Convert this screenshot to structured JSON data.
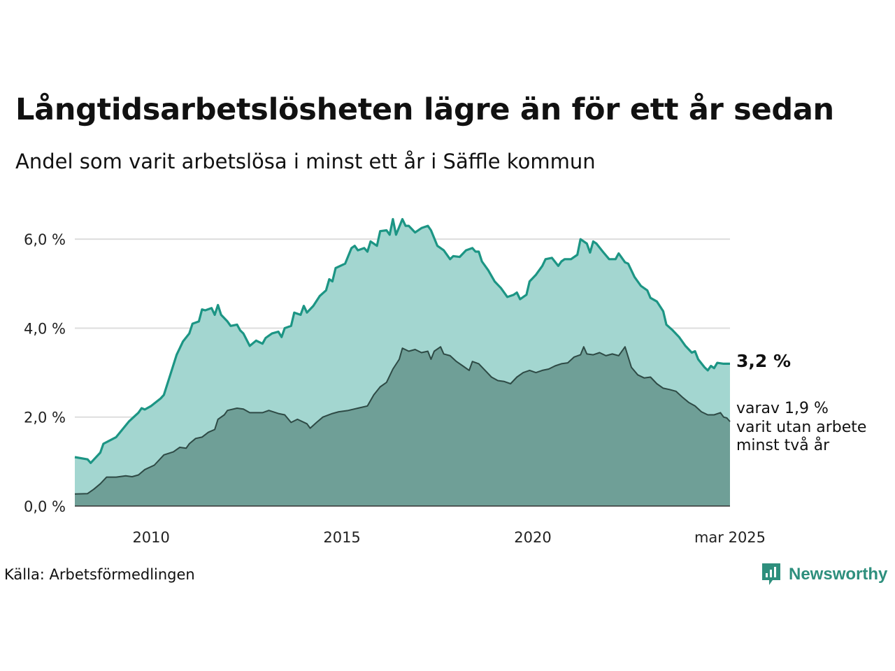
{
  "header": {
    "title": "Långtidsarbetslösheten lägre än för ett år sedan",
    "subtitle": "Andel som varit arbetslösa i minst ett år i Säffle kommun"
  },
  "footer": {
    "source": "Källa: Arbetsförmedlingen",
    "brand": "Newsworthy",
    "brand_icon": "newsworthy-chart-logo-icon"
  },
  "colors": {
    "main_fill": "#a3d6d0",
    "main_line": "#1c9584",
    "sub_fill": "#6f9f97",
    "sub_line": "#2e4a45",
    "grid": "#dddddd",
    "brand": "#2e8f7d"
  },
  "chart_data": {
    "type": "area",
    "x_range": [
      "2008-01",
      "2025-03"
    ],
    "ylim": [
      0,
      6.6
    ],
    "y_ticks": [
      0,
      2,
      4,
      6
    ],
    "y_tick_labels": [
      "0,0 %",
      "2,0 %",
      "4,0 %",
      "6,0 %"
    ],
    "x_ticks": [
      "2010-01",
      "2015-01",
      "2020-01",
      "2025-03"
    ],
    "x_tick_labels": [
      "2010",
      "2015",
      "2020",
      "mar 2025"
    ],
    "grid": true,
    "end_labels": {
      "main": "3,2 %",
      "sub": [
        "varav 1,9 %",
        "varit utan arbete",
        "minst två år"
      ]
    },
    "series": [
      {
        "points": [
          [
            "2008-01",
            1.1
          ],
          [
            "2008-05",
            1.05
          ],
          [
            "2008-06",
            0.97
          ],
          [
            "2008-09",
            1.2
          ],
          [
            "2008-10",
            1.4
          ],
          [
            "2009-02",
            1.55
          ],
          [
            "2009-06",
            1.9
          ],
          [
            "2009-09",
            2.1
          ],
          [
            "2009-10",
            2.2
          ],
          [
            "2009-11",
            2.17
          ],
          [
            "2010-01",
            2.25
          ],
          [
            "2010-04",
            2.42
          ],
          [
            "2010-05",
            2.5
          ],
          [
            "2010-07",
            2.95
          ],
          [
            "2010-09",
            3.4
          ],
          [
            "2010-11",
            3.7
          ],
          [
            "2011-01",
            3.88
          ],
          [
            "2011-02",
            4.1
          ],
          [
            "2011-04",
            4.15
          ],
          [
            "2011-05",
            4.42
          ],
          [
            "2011-06",
            4.4
          ],
          [
            "2011-08",
            4.45
          ],
          [
            "2011-09",
            4.3
          ],
          [
            "2011-10",
            4.52
          ],
          [
            "2011-11",
            4.3
          ],
          [
            "2012-01",
            4.15
          ],
          [
            "2012-02",
            4.05
          ],
          [
            "2012-04",
            4.08
          ],
          [
            "2012-05",
            3.95
          ],
          [
            "2012-06",
            3.88
          ],
          [
            "2012-08",
            3.6
          ],
          [
            "2012-10",
            3.72
          ],
          [
            "2012-12",
            3.65
          ],
          [
            "2013-01",
            3.78
          ],
          [
            "2013-03",
            3.88
          ],
          [
            "2013-05",
            3.92
          ],
          [
            "2013-06",
            3.8
          ],
          [
            "2013-07",
            4.0
          ],
          [
            "2013-09",
            4.05
          ],
          [
            "2013-10",
            4.35
          ],
          [
            "2013-12",
            4.3
          ],
          [
            "2014-01",
            4.5
          ],
          [
            "2014-02",
            4.35
          ],
          [
            "2014-04",
            4.5
          ],
          [
            "2014-06",
            4.72
          ],
          [
            "2014-08",
            4.85
          ],
          [
            "2014-09",
            5.1
          ],
          [
            "2014-10",
            5.05
          ],
          [
            "2014-11",
            5.35
          ],
          [
            "2015-02",
            5.45
          ],
          [
            "2015-04",
            5.8
          ],
          [
            "2015-05",
            5.85
          ],
          [
            "2015-06",
            5.75
          ],
          [
            "2015-08",
            5.8
          ],
          [
            "2015-09",
            5.72
          ],
          [
            "2015-10",
            5.95
          ],
          [
            "2015-12",
            5.85
          ],
          [
            "2016-01",
            6.18
          ],
          [
            "2016-03",
            6.2
          ],
          [
            "2016-04",
            6.1
          ],
          [
            "2016-05",
            6.45
          ],
          [
            "2016-06",
            6.1
          ],
          [
            "2016-08",
            6.45
          ],
          [
            "2016-09",
            6.3
          ],
          [
            "2016-10",
            6.3
          ],
          [
            "2016-12",
            6.15
          ],
          [
            "2017-02",
            6.25
          ],
          [
            "2017-04",
            6.3
          ],
          [
            "2017-05",
            6.2
          ],
          [
            "2017-07",
            5.85
          ],
          [
            "2017-09",
            5.75
          ],
          [
            "2017-11",
            5.55
          ],
          [
            "2017-12",
            5.62
          ],
          [
            "2018-02",
            5.6
          ],
          [
            "2018-04",
            5.75
          ],
          [
            "2018-06",
            5.8
          ],
          [
            "2018-07",
            5.72
          ],
          [
            "2018-08",
            5.72
          ],
          [
            "2018-09",
            5.5
          ],
          [
            "2018-11",
            5.3
          ],
          [
            "2019-01",
            5.05
          ],
          [
            "2019-03",
            4.9
          ],
          [
            "2019-05",
            4.7
          ],
          [
            "2019-07",
            4.75
          ],
          [
            "2019-08",
            4.8
          ],
          [
            "2019-09",
            4.65
          ],
          [
            "2019-11",
            4.75
          ],
          [
            "2019-12",
            5.05
          ],
          [
            "2020-02",
            5.2
          ],
          [
            "2020-04",
            5.4
          ],
          [
            "2020-05",
            5.55
          ],
          [
            "2020-07",
            5.58
          ],
          [
            "2020-09",
            5.4
          ],
          [
            "2020-10",
            5.5
          ],
          [
            "2020-11",
            5.55
          ],
          [
            "2021-01",
            5.55
          ],
          [
            "2021-03",
            5.65
          ],
          [
            "2021-04",
            6.0
          ],
          [
            "2021-06",
            5.9
          ],
          [
            "2021-07",
            5.7
          ],
          [
            "2021-08",
            5.95
          ],
          [
            "2021-09",
            5.9
          ],
          [
            "2021-11",
            5.72
          ],
          [
            "2022-01",
            5.55
          ],
          [
            "2022-03",
            5.55
          ],
          [
            "2022-04",
            5.68
          ],
          [
            "2022-06",
            5.48
          ],
          [
            "2022-07",
            5.45
          ],
          [
            "2022-09",
            5.15
          ],
          [
            "2022-11",
            4.95
          ],
          [
            "2023-01",
            4.85
          ],
          [
            "2023-02",
            4.68
          ],
          [
            "2023-04",
            4.6
          ],
          [
            "2023-06",
            4.38
          ],
          [
            "2023-07",
            4.08
          ],
          [
            "2023-09",
            3.95
          ],
          [
            "2023-11",
            3.8
          ],
          [
            "2024-01",
            3.6
          ],
          [
            "2024-03",
            3.45
          ],
          [
            "2024-04",
            3.48
          ],
          [
            "2024-05",
            3.3
          ],
          [
            "2024-07",
            3.12
          ],
          [
            "2024-08",
            3.05
          ],
          [
            "2024-09",
            3.15
          ],
          [
            "2024-10",
            3.1
          ],
          [
            "2024-11",
            3.22
          ],
          [
            "2025-01",
            3.2
          ],
          [
            "2025-03",
            3.2
          ]
        ]
      },
      {
        "points": [
          [
            "2008-01",
            0.27
          ],
          [
            "2008-05",
            0.28
          ],
          [
            "2008-07",
            0.38
          ],
          [
            "2008-09",
            0.5
          ],
          [
            "2008-11",
            0.65
          ],
          [
            "2009-02",
            0.65
          ],
          [
            "2009-05",
            0.68
          ],
          [
            "2009-07",
            0.66
          ],
          [
            "2009-09",
            0.7
          ],
          [
            "2009-11",
            0.82
          ],
          [
            "2010-02",
            0.92
          ],
          [
            "2010-05",
            1.15
          ],
          [
            "2010-08",
            1.22
          ],
          [
            "2010-10",
            1.32
          ],
          [
            "2010-12",
            1.3
          ],
          [
            "2011-01",
            1.4
          ],
          [
            "2011-03",
            1.52
          ],
          [
            "2011-05",
            1.55
          ],
          [
            "2011-07",
            1.66
          ],
          [
            "2011-09",
            1.72
          ],
          [
            "2011-10",
            1.95
          ],
          [
            "2011-12",
            2.05
          ],
          [
            "2012-01",
            2.15
          ],
          [
            "2012-04",
            2.2
          ],
          [
            "2012-06",
            2.18
          ],
          [
            "2012-08",
            2.1
          ],
          [
            "2012-12",
            2.1
          ],
          [
            "2013-02",
            2.15
          ],
          [
            "2013-05",
            2.08
          ],
          [
            "2013-07",
            2.05
          ],
          [
            "2013-09",
            1.88
          ],
          [
            "2013-11",
            1.95
          ],
          [
            "2014-02",
            1.85
          ],
          [
            "2014-03",
            1.75
          ],
          [
            "2014-05",
            1.88
          ],
          [
            "2014-07",
            2.0
          ],
          [
            "2014-10",
            2.08
          ],
          [
            "2014-12",
            2.12
          ],
          [
            "2015-03",
            2.15
          ],
          [
            "2015-06",
            2.2
          ],
          [
            "2015-09",
            2.25
          ],
          [
            "2015-11",
            2.5
          ],
          [
            "2016-01",
            2.68
          ],
          [
            "2016-03",
            2.78
          ],
          [
            "2016-05",
            3.08
          ],
          [
            "2016-07",
            3.3
          ],
          [
            "2016-08",
            3.55
          ],
          [
            "2016-10",
            3.48
          ],
          [
            "2016-12",
            3.52
          ],
          [
            "2017-02",
            3.45
          ],
          [
            "2017-04",
            3.48
          ],
          [
            "2017-05",
            3.3
          ],
          [
            "2017-06",
            3.48
          ],
          [
            "2017-08",
            3.58
          ],
          [
            "2017-09",
            3.42
          ],
          [
            "2017-11",
            3.38
          ],
          [
            "2018-01",
            3.25
          ],
          [
            "2018-03",
            3.15
          ],
          [
            "2018-05",
            3.05
          ],
          [
            "2018-06",
            3.25
          ],
          [
            "2018-08",
            3.2
          ],
          [
            "2018-10",
            3.05
          ],
          [
            "2018-12",
            2.9
          ],
          [
            "2019-02",
            2.82
          ],
          [
            "2019-04",
            2.8
          ],
          [
            "2019-06",
            2.75
          ],
          [
            "2019-08",
            2.9
          ],
          [
            "2019-10",
            3.0
          ],
          [
            "2019-12",
            3.05
          ],
          [
            "2020-02",
            3.0
          ],
          [
            "2020-04",
            3.05
          ],
          [
            "2020-06",
            3.08
          ],
          [
            "2020-08",
            3.15
          ],
          [
            "2020-10",
            3.2
          ],
          [
            "2020-12",
            3.22
          ],
          [
            "2021-02",
            3.35
          ],
          [
            "2021-04",
            3.4
          ],
          [
            "2021-05",
            3.58
          ],
          [
            "2021-06",
            3.42
          ],
          [
            "2021-08",
            3.4
          ],
          [
            "2021-10",
            3.45
          ],
          [
            "2021-12",
            3.38
          ],
          [
            "2022-02",
            3.42
          ],
          [
            "2022-04",
            3.38
          ],
          [
            "2022-06",
            3.58
          ],
          [
            "2022-08",
            3.12
          ],
          [
            "2022-10",
            2.95
          ],
          [
            "2022-12",
            2.88
          ],
          [
            "2023-02",
            2.9
          ],
          [
            "2023-04",
            2.75
          ],
          [
            "2023-06",
            2.65
          ],
          [
            "2023-08",
            2.62
          ],
          [
            "2023-10",
            2.58
          ],
          [
            "2023-12",
            2.45
          ],
          [
            "2024-02",
            2.33
          ],
          [
            "2024-04",
            2.25
          ],
          [
            "2024-06",
            2.12
          ],
          [
            "2024-08",
            2.05
          ],
          [
            "2024-10",
            2.05
          ],
          [
            "2024-12",
            2.1
          ],
          [
            "2025-01",
            2.0
          ],
          [
            "2025-02",
            1.98
          ],
          [
            "2025-03",
            1.9
          ]
        ]
      }
    ]
  }
}
